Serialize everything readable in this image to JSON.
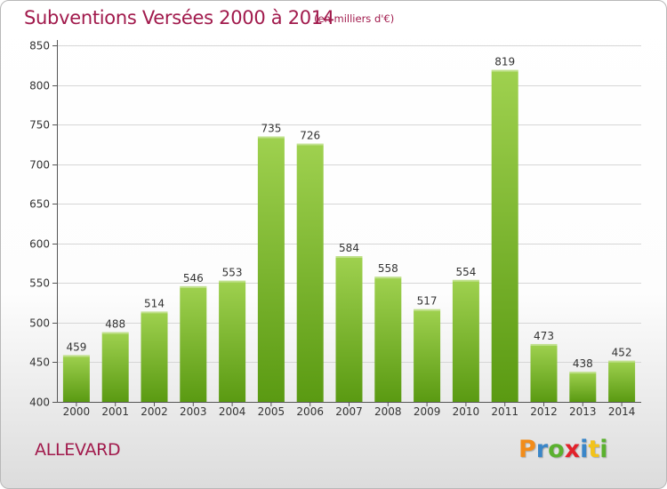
{
  "header": {
    "title": "Subventions Versées 2000 à 2014",
    "subtitle": "(en milliers d'€)"
  },
  "footer": {
    "commune": "ALLEVARD",
    "logo_text": "Proxiti",
    "logo_colors": [
      "#f28c1a",
      "#3a86c8",
      "#5bb12f",
      "#e2222b",
      "#3a86c8",
      "#f2c31a",
      "#5bb12f"
    ]
  },
  "colors": {
    "title": "#a11a4c",
    "bar_top": "#9fd14f",
    "bar_bottom": "#5a9a12",
    "grid": "#d6d6d6"
  },
  "chart_data": {
    "type": "bar",
    "title": "Subventions Versées 2000 à 2014",
    "subtitle": "(en milliers d'€)",
    "categories": [
      "2000",
      "2001",
      "2002",
      "2003",
      "2004",
      "2005",
      "2006",
      "2007",
      "2008",
      "2009",
      "2010",
      "2011",
      "2012",
      "2013",
      "2014"
    ],
    "values": [
      459,
      488,
      514,
      546,
      553,
      735,
      726,
      584,
      558,
      517,
      554,
      819,
      473,
      438,
      452
    ],
    "ylim": [
      400,
      850
    ],
    "yticks": [
      400,
      450,
      500,
      550,
      600,
      650,
      700,
      750,
      800,
      850
    ],
    "grid": true,
    "xlabel": "",
    "ylabel": ""
  }
}
